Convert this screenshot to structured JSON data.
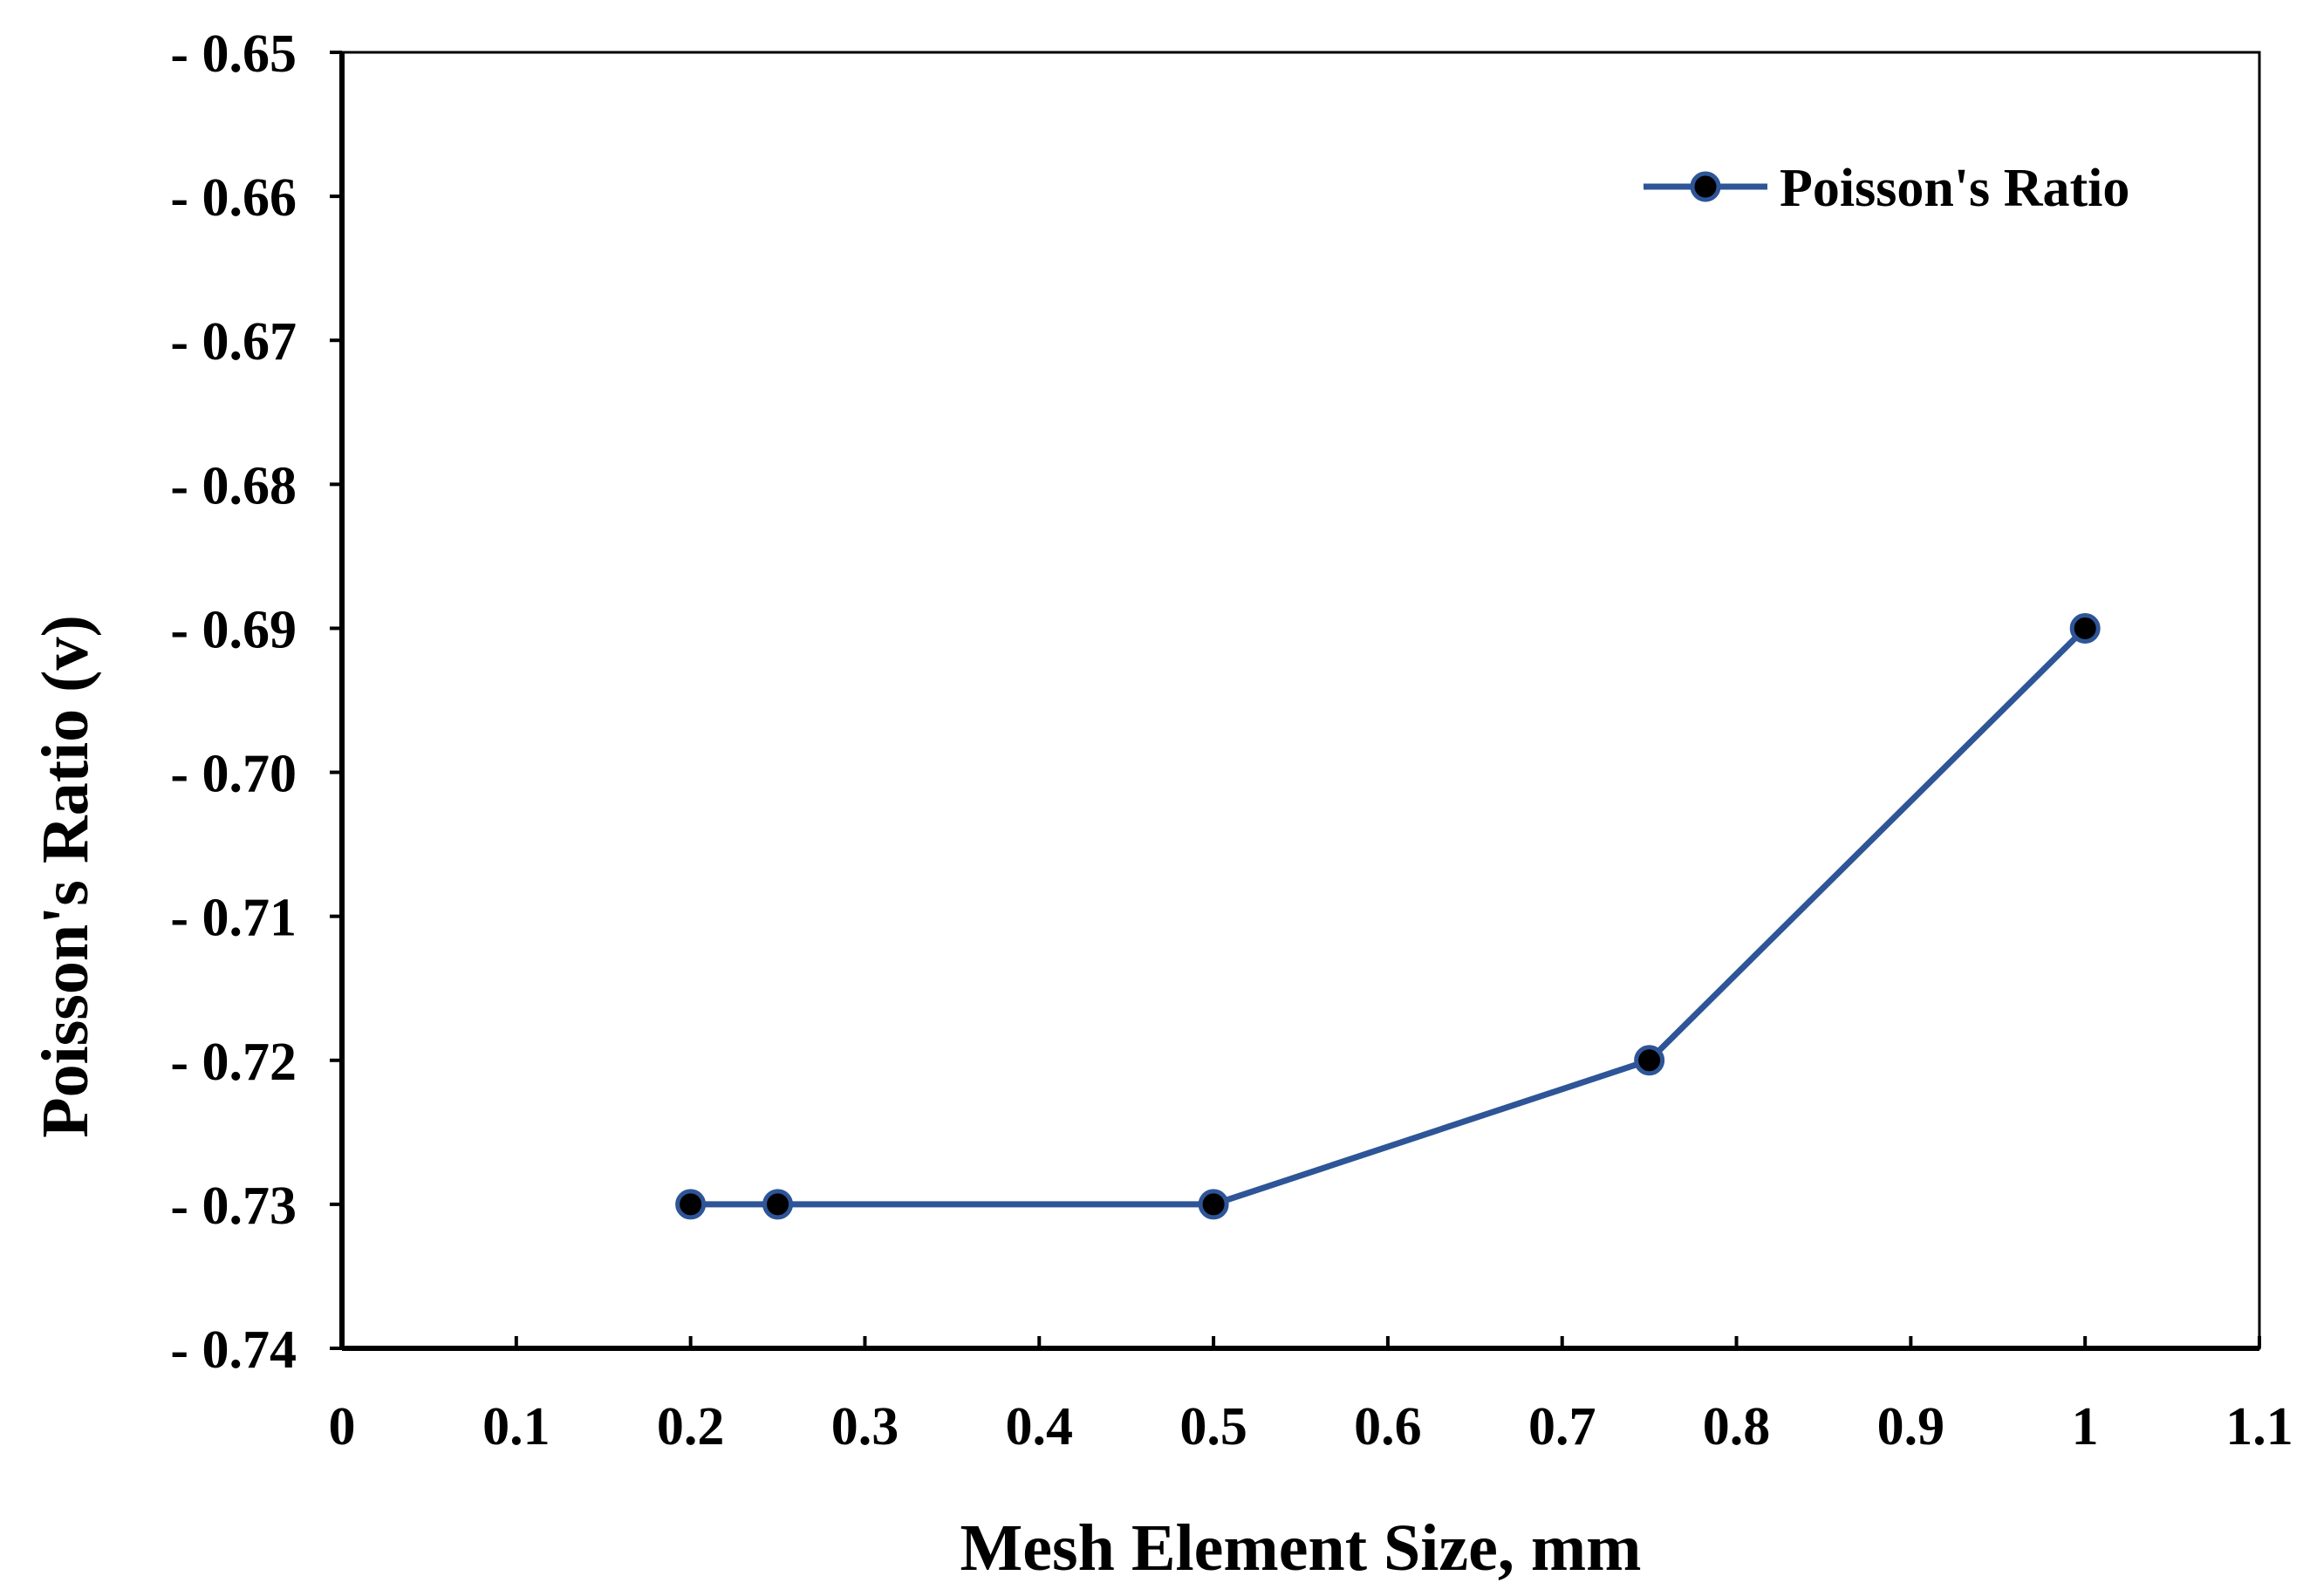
{
  "chart_data": {
    "type": "line",
    "title": "",
    "xlabel": "Mesh Element Size, mm",
    "ylabel": "Poisson's  Ratio (v)",
    "xlim": [
      0,
      1.1
    ],
    "ylim": [
      -0.74,
      -0.65
    ],
    "grid": false,
    "legend_position": "top-right",
    "x_ticks": [
      0,
      0.1,
      0.2,
      0.3,
      0.4,
      0.5,
      0.6,
      0.7,
      0.8,
      0.9,
      1,
      1.1
    ],
    "x_tick_labels": [
      "0",
      "0.1",
      "0.2",
      "0.3",
      "0.4",
      "0.5",
      "0.6",
      "0.7",
      "0.8",
      "0.9",
      "1",
      "1.1"
    ],
    "y_ticks": [
      -0.65,
      -0.66,
      -0.67,
      -0.68,
      -0.69,
      -0.7,
      -0.71,
      -0.72,
      -0.73,
      -0.74
    ],
    "y_tick_labels": [
      "- 0.65",
      "- 0.66",
      "- 0.67",
      "- 0.68",
      "- 0.69",
      "- 0.70",
      "- 0.71",
      "- 0.72",
      "- 0.73",
      "- 0.74"
    ],
    "series": [
      {
        "name": "Poisson's Ratio",
        "color": "#2e5597",
        "marker_color": "#000000",
        "x": [
          0.2,
          0.25,
          0.5,
          0.75,
          1.0
        ],
        "y": [
          -0.73,
          -0.73,
          -0.73,
          -0.72,
          -0.69
        ]
      }
    ]
  }
}
